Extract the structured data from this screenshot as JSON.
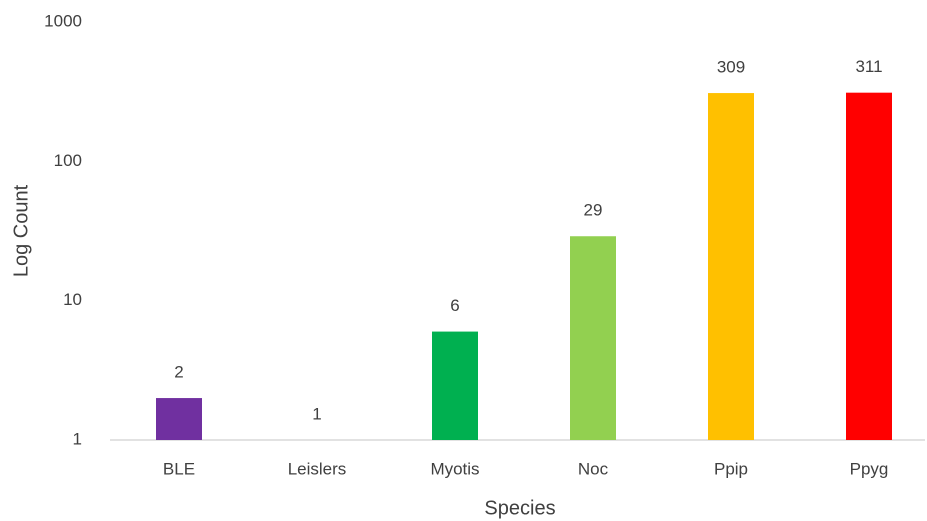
{
  "chart_data": {
    "type": "bar",
    "log_scale": true,
    "xlabel": "Species",
    "ylabel": "Log Count",
    "categories": [
      "BLE",
      "Leislers",
      "Myotis",
      "Noc",
      "Ppip",
      "Ppyg"
    ],
    "values": [
      2,
      1,
      6,
      29,
      309,
      311
    ],
    "colors": [
      "#7030a0",
      "#7f7f7f",
      "#00b050",
      "#92d050",
      "#ffc000",
      "#ff0000"
    ],
    "ylim": [
      1,
      1000
    ],
    "yticks": [
      1,
      10,
      100,
      1000
    ],
    "grid": false
  }
}
